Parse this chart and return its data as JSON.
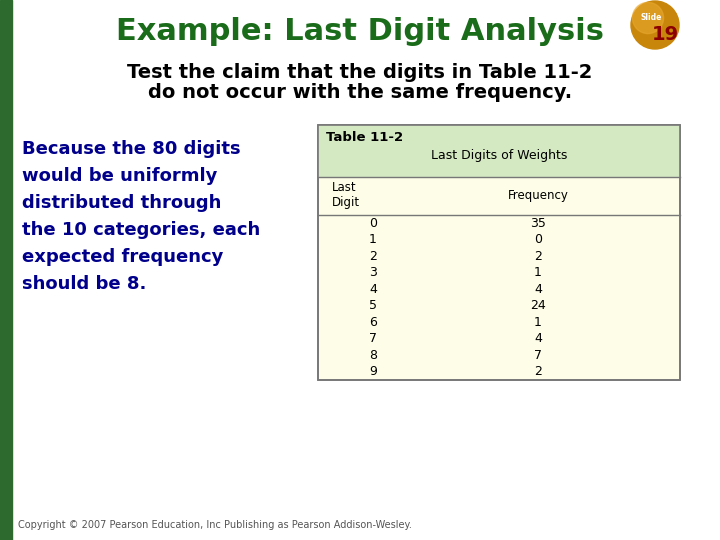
{
  "title": "Example: Last Digit Analysis",
  "subtitle_line1": "Test the claim that the digits in Table 11-2",
  "subtitle_line2": "do not occur with the same frequency.",
  "body_lines": [
    "Because the 80 digits",
    "would be uniformly",
    "distributed through",
    "the 10 categories, each",
    "expected frequency",
    "should be 8."
  ],
  "table_title": "Table 11-2",
  "table_subtitle": "Last Digits of Weights",
  "col_header1": "Last\nDigit",
  "col_header2": "Frequency",
  "digits": [
    0,
    1,
    2,
    3,
    4,
    5,
    6,
    7,
    8,
    9
  ],
  "frequencies": [
    35,
    0,
    2,
    1,
    4,
    24,
    1,
    4,
    7,
    2
  ],
  "copyright": "Copyright © 2007 Pearson Education, Inc Publishing as Pearson Addison-Wesley.",
  "slide_num": "19",
  "bg_color": "#ffffff",
  "title_color": "#1a6b1a",
  "subtitle_color": "#000000",
  "body_color": "#00008B",
  "table_header_bg": "#d4e8c2",
  "table_body_bg": "#fdfde8",
  "table_border_color": "#777777",
  "left_bar_color": "#2d6a2d",
  "badge_gold": "#c8860a"
}
